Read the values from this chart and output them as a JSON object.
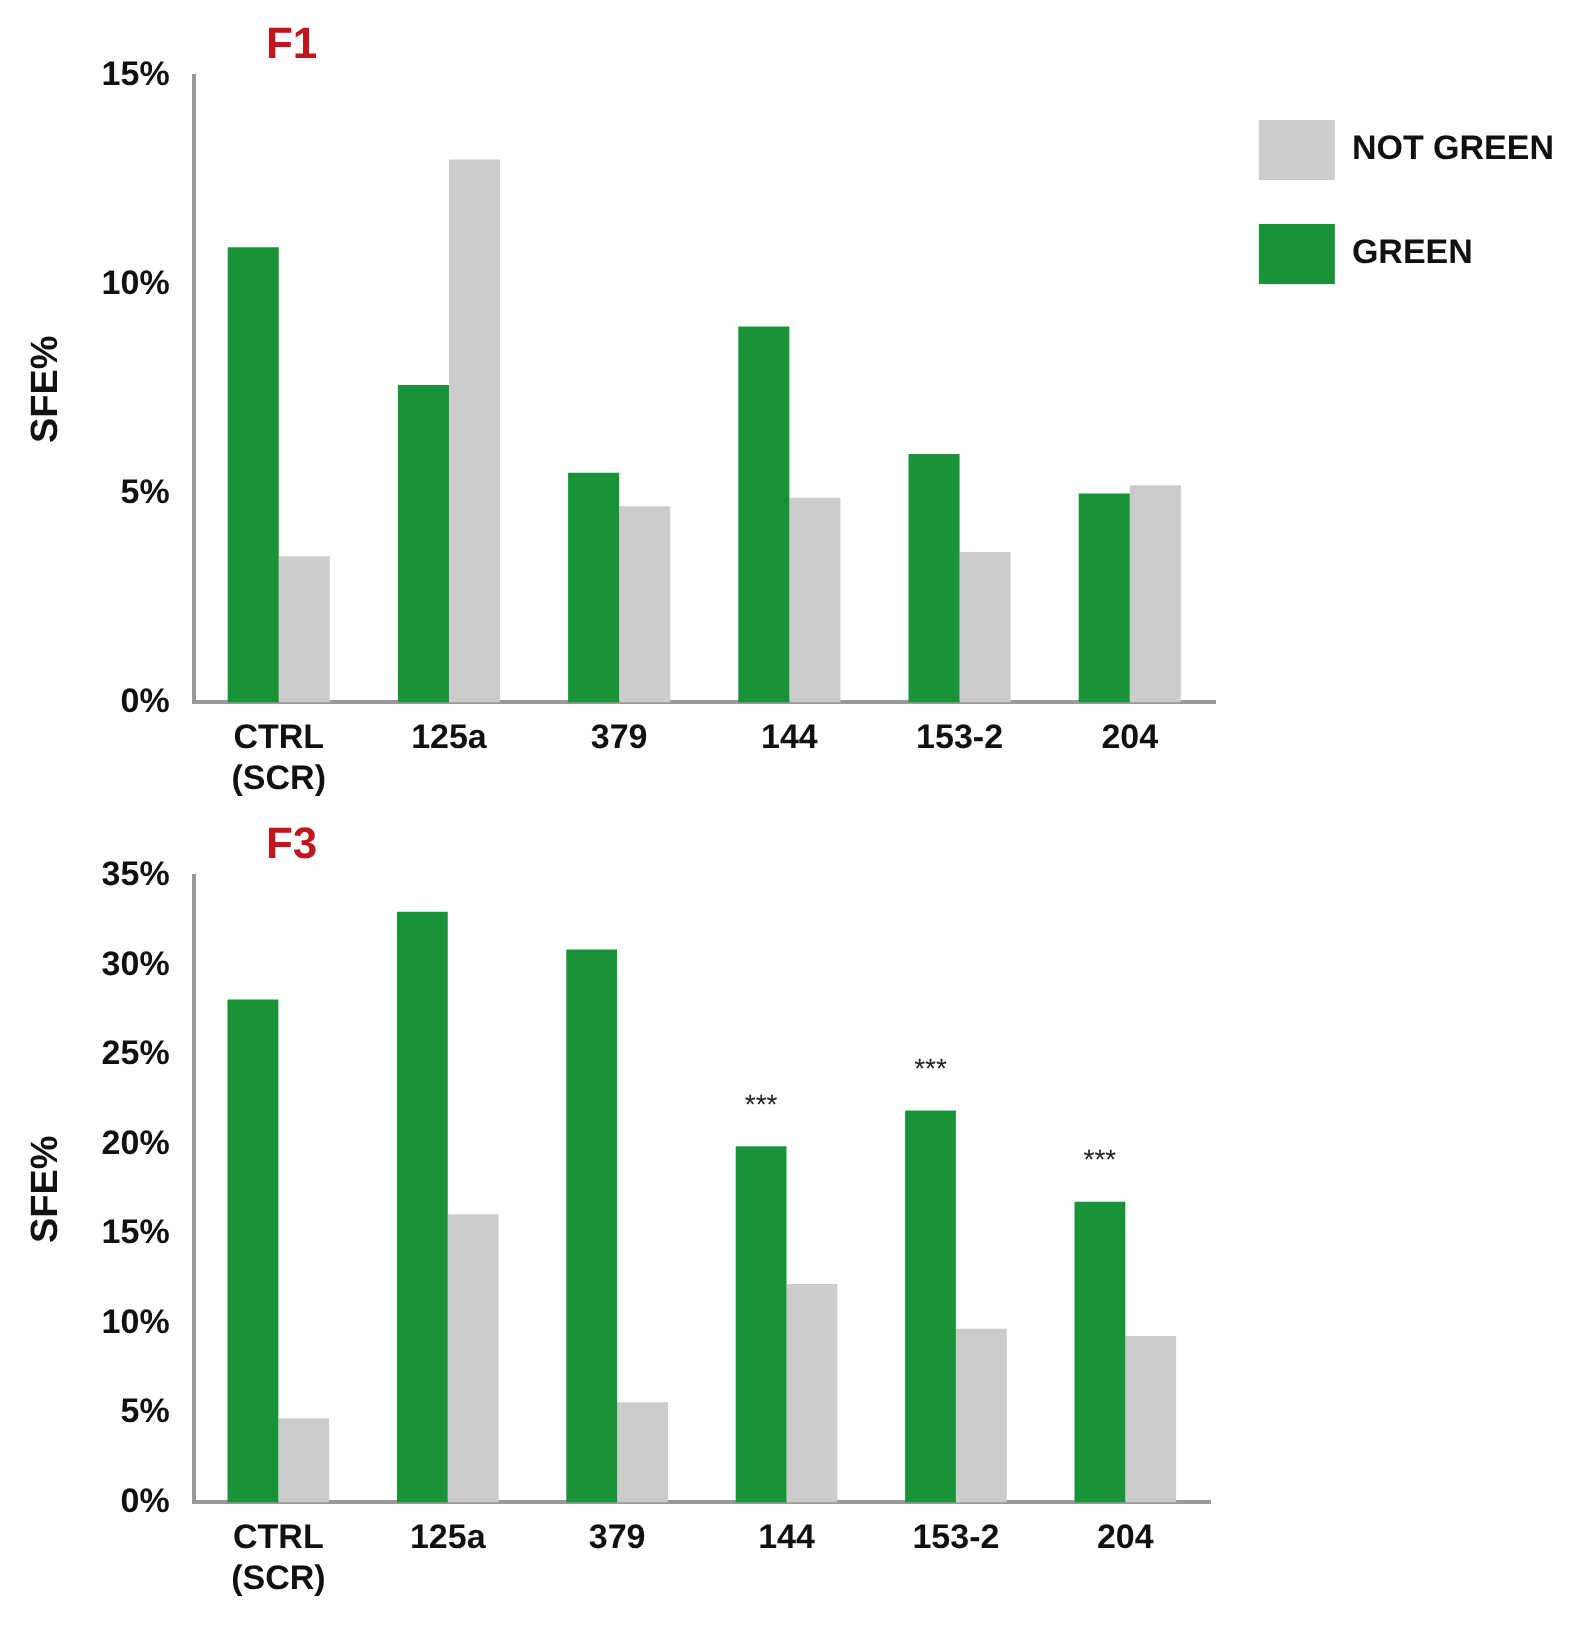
{
  "chart_data": [
    {
      "type": "bar",
      "title": "F1",
      "ylabel": "SFE%",
      "categories": [
        "CTRL\n(SCR)",
        "125a",
        "379",
        "144",
        "153-2",
        "204"
      ],
      "series": [
        {
          "name": "GREEN",
          "color": "#1a9338",
          "values": [
            10.9,
            7.6,
            5.5,
            9.0,
            5.95,
            5.0
          ]
        },
        {
          "name": "NOT GREEN",
          "color": "#cccccc",
          "values": [
            3.5,
            13.0,
            4.7,
            4.9,
            3.6,
            5.2
          ]
        }
      ],
      "ylim": [
        0,
        15
      ],
      "yticks": [
        {
          "value": 0,
          "label": "0%"
        },
        {
          "value": 5,
          "label": "5%"
        },
        {
          "value": 10,
          "label": "10%"
        },
        {
          "value": 15,
          "label": "15%"
        }
      ],
      "grid": false,
      "legend": "top right"
    },
    {
      "type": "bar",
      "title": "F3",
      "ylabel": "SFE%",
      "categories": [
        "CTRL\n(SCR)",
        "125a",
        "379",
        "144",
        "153-2",
        "204"
      ],
      "series": [
        {
          "name": "GREEN",
          "color": "#1a9338",
          "values": [
            28.1,
            33.0,
            30.9,
            19.9,
            21.9,
            16.8
          ]
        },
        {
          "name": "NOT GREEN",
          "color": "#cccccc",
          "values": [
            4.7,
            16.1,
            5.6,
            12.2,
            9.7,
            9.3
          ]
        }
      ],
      "ylim": [
        0,
        35
      ],
      "yticks": [
        {
          "value": 0,
          "label": "0%"
        },
        {
          "value": 5,
          "label": "5%"
        },
        {
          "value": 10,
          "label": "10%"
        },
        {
          "value": 15,
          "label": "15%"
        },
        {
          "value": 20,
          "label": "20%"
        },
        {
          "value": 25,
          "label": "25%"
        },
        {
          "value": 30,
          "label": "30%"
        },
        {
          "value": 35,
          "label": "35%"
        }
      ],
      "grid": false,
      "legend": false,
      "annotations": [
        {
          "text": "***",
          "x": "144",
          "y": 19.9
        },
        {
          "text": "***",
          "x": "153-2",
          "y": 21.9
        },
        {
          "text": "***",
          "x": "204",
          "y": 16.8
        }
      ]
    }
  ]
}
